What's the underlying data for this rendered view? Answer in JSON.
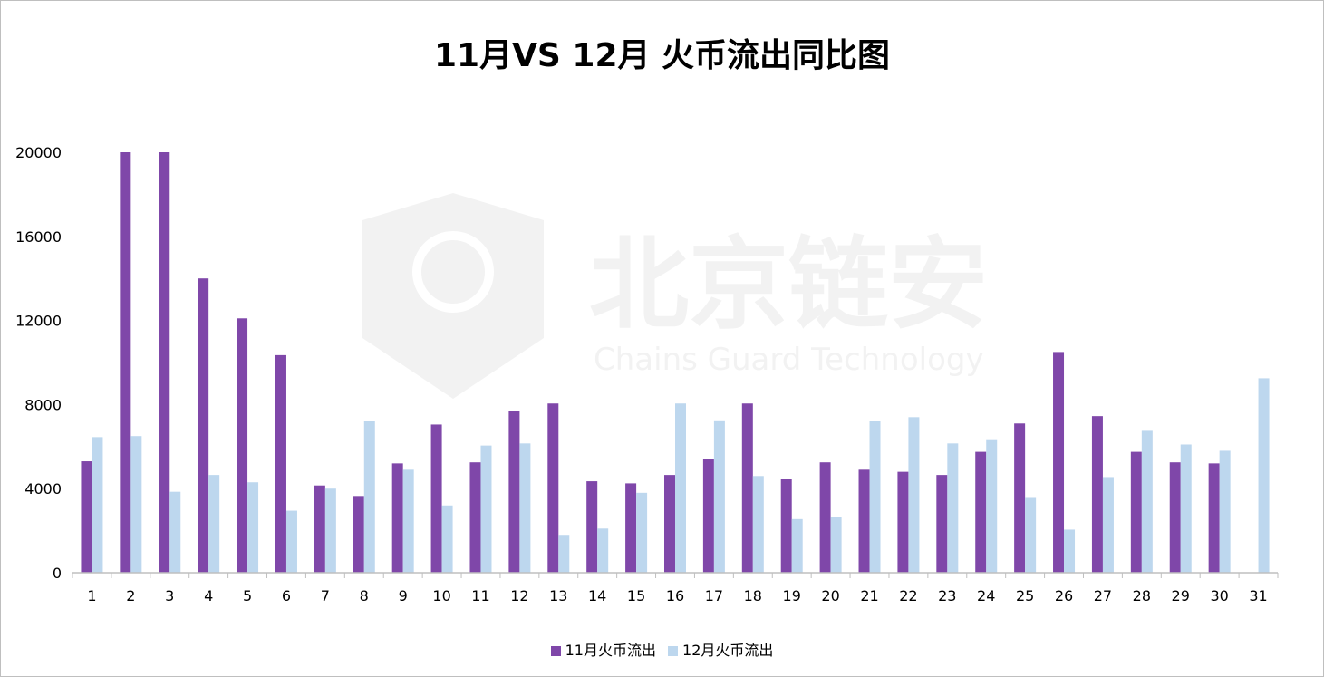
{
  "colors": {
    "series_nov": "#7f47a9",
    "series_dec": "#bdd7ee",
    "axis": "#bfbfbf",
    "watermark": "#f0f0f0"
  },
  "watermark": {
    "cn": "北京链安",
    "en": "Chains Guard Technology"
  },
  "chart_data": {
    "type": "bar",
    "title": "11月VS 12月 火币流出同比图",
    "xlabel": "",
    "ylabel": "",
    "ylim": [
      0,
      20000
    ],
    "yticks": [
      "0",
      "4000",
      "8000",
      "12000",
      "16000",
      "20000"
    ],
    "ytick_values": [
      0,
      4000,
      8000,
      12000,
      16000,
      20000
    ],
    "grid": false,
    "legend_position": "bottom",
    "categories": [
      "1",
      "2",
      "3",
      "4",
      "5",
      "6",
      "7",
      "8",
      "9",
      "10",
      "11",
      "12",
      "13",
      "14",
      "15",
      "16",
      "17",
      "18",
      "19",
      "20",
      "21",
      "22",
      "23",
      "24",
      "25",
      "26",
      "27",
      "28",
      "29",
      "30",
      "31"
    ],
    "series": [
      {
        "name": "11月火币流出",
        "values": [
          5300,
          20000,
          20000,
          14000,
          12100,
          10350,
          4150,
          3650,
          5200,
          7050,
          5250,
          7700,
          8050,
          4350,
          4250,
          4650,
          5400,
          8050,
          4450,
          5250,
          4900,
          4800,
          4650,
          5750,
          7100,
          10500,
          7450,
          5750,
          5250,
          5200,
          null
        ]
      },
      {
        "name": "12月火币流出",
        "values": [
          6450,
          6500,
          3850,
          4650,
          4300,
          2950,
          4000,
          7200,
          4900,
          3200,
          6050,
          6150,
          1800,
          2100,
          3800,
          8050,
          7250,
          4600,
          2550,
          2650,
          7200,
          7400,
          6150,
          6350,
          3600,
          2050,
          4550,
          6750,
          6100,
          5800,
          9250
        ]
      }
    ]
  }
}
